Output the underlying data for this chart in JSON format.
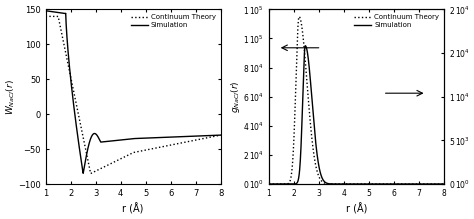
{
  "left": {
    "ylabel": "$W_{NaCl}(r)$",
    "xlabel": "r (Å)",
    "xlim": [
      1,
      8
    ],
    "ylim": [
      -100,
      150
    ],
    "yticks": [
      -100,
      -50,
      0,
      50,
      100,
      150
    ],
    "xticks": [
      1,
      2,
      3,
      4,
      5,
      6,
      7,
      8
    ],
    "legend_labels": [
      "Continuum Theory",
      "Simulation"
    ],
    "bg_color": "#f0f0f0"
  },
  "right": {
    "ylabel_left": "$g_{NaCl}(r)$",
    "xlabel": "r (Å)",
    "xlim": [
      1,
      8
    ],
    "ylim_left": [
      0,
      120000.0
    ],
    "ylim_right": [
      0,
      20000.0
    ],
    "yticks_left": [
      0,
      20000.0,
      40000.0,
      60000.0,
      80000.0,
      100000.0,
      120000.0
    ],
    "yticks_right": [
      0,
      5000.0,
      10000.0,
      15000.0,
      20000.0
    ],
    "xticks": [
      1,
      2,
      3,
      4,
      5,
      6,
      7,
      8
    ],
    "legend_labels": [
      "Continuum Theory",
      "Simulation"
    ],
    "bg_color": "#f0f0f0"
  }
}
